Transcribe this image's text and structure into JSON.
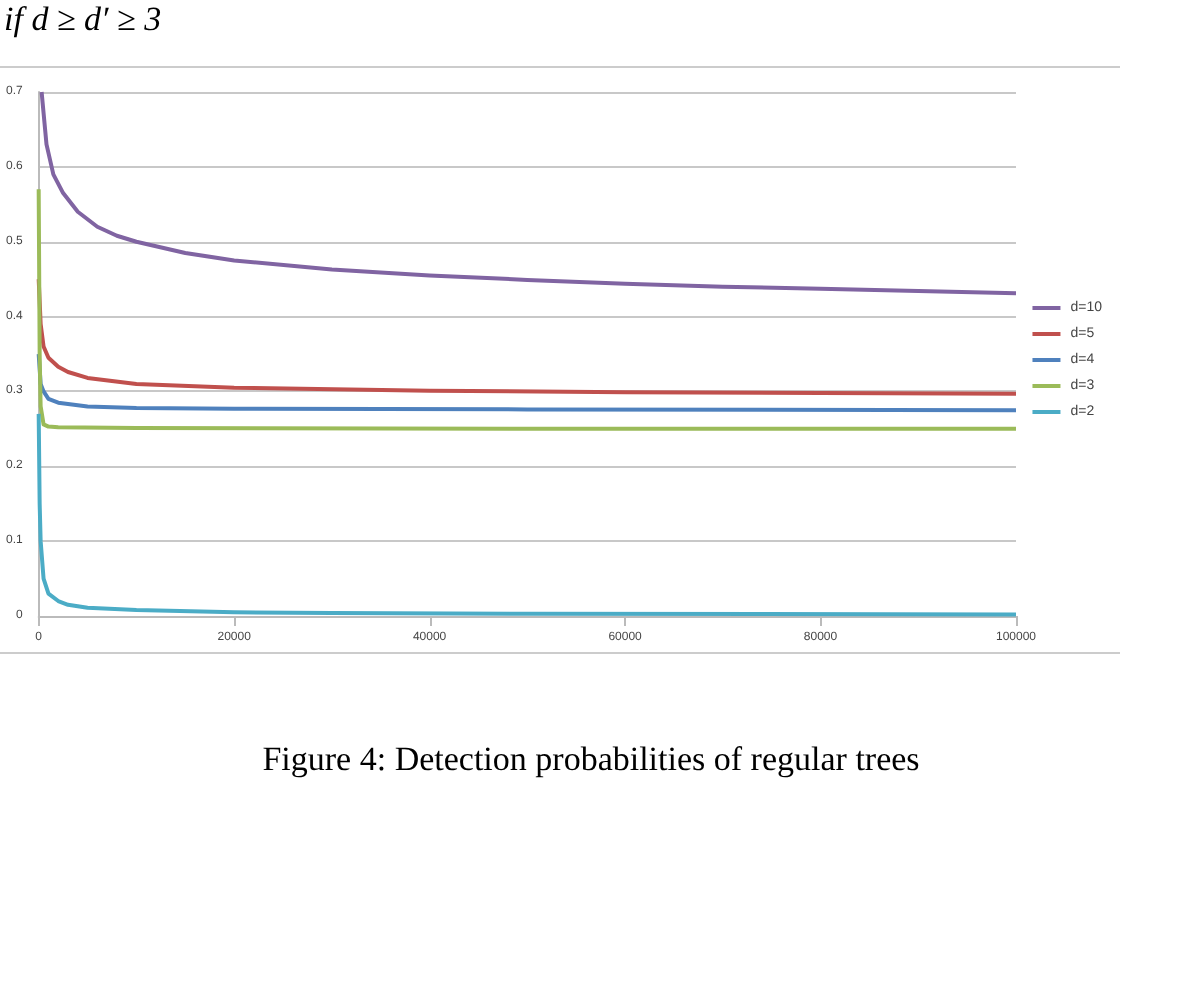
{
  "chart_data": {
    "type": "line",
    "annotations": [
      "if d ≥ d′ ≥ 3",
      "Figure 4: Detection probabilities of regular trees"
    ],
    "xlim": [
      0,
      100000
    ],
    "xticks": [
      0,
      20000,
      40000,
      60000,
      80000,
      100000
    ],
    "ylim": [
      0,
      0.7
    ],
    "yticks": [
      0,
      0.1,
      0.2,
      0.3,
      0.4,
      0.5,
      0.6,
      0.7
    ],
    "grid": "y",
    "legend": "right",
    "marker": "none",
    "line_style": "solid",
    "series": [
      {
        "name": "d=10",
        "color": "#8064a2",
        "x": [
          300,
          800,
          1500,
          2500,
          4000,
          6000,
          8000,
          10000,
          15000,
          20000,
          30000,
          40000,
          50000,
          60000,
          70000,
          80000,
          90000,
          100000
        ],
        "values": [
          0.7,
          0.63,
          0.59,
          0.565,
          0.54,
          0.52,
          0.508,
          0.5,
          0.485,
          0.475,
          0.463,
          0.455,
          0.449,
          0.444,
          0.44,
          0.437,
          0.434,
          0.431
        ]
      },
      {
        "name": "d=5",
        "color": "#c0504d",
        "x": [
          0,
          200,
          500,
          1000,
          2000,
          3000,
          5000,
          10000,
          20000,
          40000,
          60000,
          80000,
          100000
        ],
        "values": [
          0.45,
          0.39,
          0.36,
          0.345,
          0.333,
          0.326,
          0.318,
          0.31,
          0.305,
          0.301,
          0.299,
          0.298,
          0.297
        ]
      },
      {
        "name": "d=4",
        "color": "#4f81bd",
        "x": [
          0,
          200,
          500,
          1000,
          2000,
          5000,
          10000,
          20000,
          50000,
          100000
        ],
        "values": [
          0.35,
          0.31,
          0.3,
          0.29,
          0.285,
          0.28,
          0.278,
          0.277,
          0.276,
          0.275
        ]
      },
      {
        "name": "d=3",
        "color": "#9bbb59",
        "x": [
          0,
          100,
          200,
          500,
          1000,
          2000,
          10000,
          50000,
          100000
        ],
        "values": [
          0.57,
          0.35,
          0.28,
          0.256,
          0.253,
          0.252,
          0.251,
          0.25,
          0.25
        ]
      },
      {
        "name": "d=2",
        "color": "#4bacc6",
        "x": [
          0,
          100,
          200,
          500,
          1000,
          2000,
          3000,
          5000,
          10000,
          20000,
          30000,
          50000,
          100000
        ],
        "values": [
          0.27,
          0.15,
          0.1,
          0.05,
          0.03,
          0.02,
          0.015,
          0.011,
          0.008,
          0.005,
          0.004,
          0.003,
          0.002
        ]
      }
    ]
  }
}
